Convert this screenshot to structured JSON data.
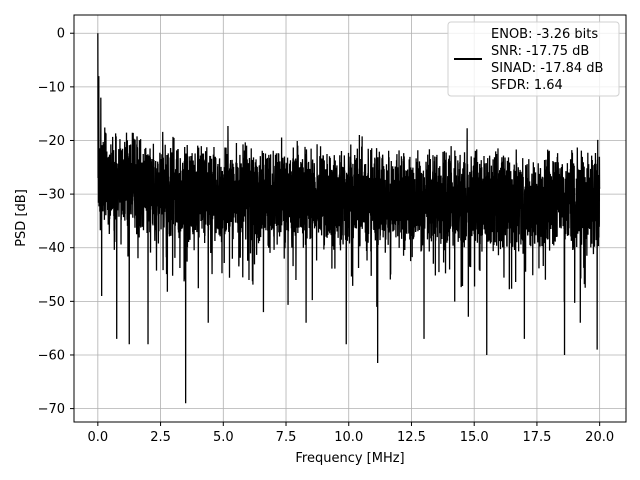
{
  "chart_data": {
    "type": "line",
    "xlabel": "Frequency [MHz]",
    "ylabel": "PSD [dB]",
    "xlim": [
      -0.95,
      21.05
    ],
    "ylim": [
      -72.5,
      3.4
    ],
    "grid": true,
    "xticks": [
      0.0,
      2.5,
      5.0,
      7.5,
      10.0,
      12.5,
      15.0,
      17.5,
      20.0
    ],
    "xtick_labels": [
      "0.0",
      "2.5",
      "5.0",
      "7.5",
      "10.0",
      "12.5",
      "15.0",
      "17.5",
      "20.0"
    ],
    "yticks": [
      0,
      -10,
      -20,
      -30,
      -40,
      -50,
      -60,
      -70
    ],
    "ytick_labels": [
      "0",
      "−10",
      "−20",
      "−30",
      "−40",
      "−50",
      "−60",
      "−70"
    ],
    "legend": {
      "placement": "upper-right",
      "entries": [
        "ENOB: -3.26 bits",
        "SNR: -17.75 dB",
        "SINAD: -17.84 dB",
        "SFDR: 1.64"
      ]
    },
    "series": [
      {
        "color": "#000000",
        "x_range": [
          0.0,
          20.0
        ],
        "baseline_db": [
          [
            0.0,
            -27
          ],
          [
            2.5,
            -29
          ],
          [
            5.0,
            -30
          ],
          [
            10.0,
            -31
          ],
          [
            15.0,
            -31
          ],
          [
            20.0,
            -31
          ]
        ],
        "peaks": [
          {
            "x": 0.0,
            "y": 0.0
          },
          {
            "x": 0.04,
            "y": -8
          },
          {
            "x": 0.12,
            "y": -12
          }
        ],
        "deep_nulls": [
          {
            "x": 0.15,
            "y": -49
          },
          {
            "x": 0.75,
            "y": -57
          },
          {
            "x": 1.25,
            "y": -58
          },
          {
            "x": 2.0,
            "y": -58
          },
          {
            "x": 3.5,
            "y": -69
          },
          {
            "x": 4.4,
            "y": -54
          },
          {
            "x": 6.6,
            "y": -52
          },
          {
            "x": 8.3,
            "y": -54
          },
          {
            "x": 9.9,
            "y": -58
          },
          {
            "x": 11.15,
            "y": -61.5
          },
          {
            "x": 13.0,
            "y": -57
          },
          {
            "x": 15.5,
            "y": -60
          },
          {
            "x": 17.0,
            "y": -57
          },
          {
            "x": 18.6,
            "y": -60
          },
          {
            "x": 19.9,
            "y": -59
          }
        ]
      }
    ]
  }
}
